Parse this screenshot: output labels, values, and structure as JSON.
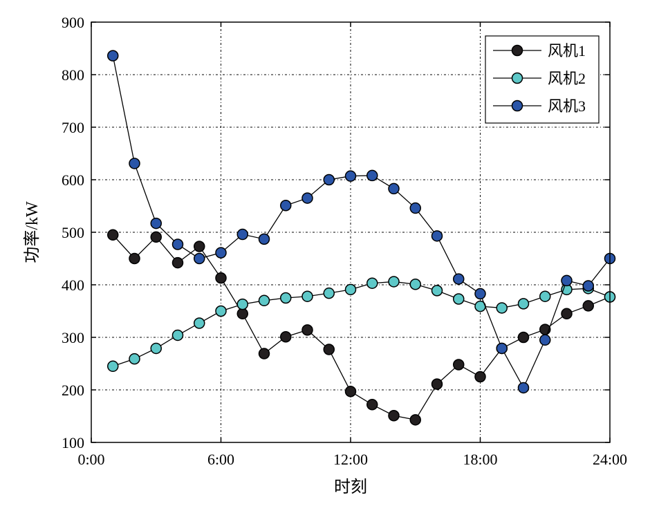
{
  "chart_data": {
    "type": "line",
    "title": "",
    "xlabel": "时刻",
    "ylabel": "功率/kW",
    "xlim": [
      0,
      24
    ],
    "ylim": [
      100,
      900
    ],
    "x_tick_values": [
      0,
      6,
      12,
      18,
      24
    ],
    "x_tick_labels": [
      "0:00",
      "6:00",
      "12:00",
      "18:00",
      "24:00"
    ],
    "y_tick_values": [
      100,
      200,
      300,
      400,
      500,
      600,
      700,
      800,
      900
    ],
    "y_tick_labels": [
      "100",
      "200",
      "300",
      "400",
      "500",
      "600",
      "700",
      "800",
      "900"
    ],
    "grid": true,
    "legend_position": "top-right",
    "x": [
      1,
      2,
      3,
      4,
      5,
      6,
      7,
      8,
      9,
      10,
      11,
      12,
      13,
      14,
      15,
      16,
      17,
      18,
      19,
      20,
      21,
      22,
      23,
      24
    ],
    "series": [
      {
        "name": "风机1",
        "color": "#231f20",
        "values": [
          495,
          450,
          491,
          442,
          473,
          413,
          345,
          269,
          301,
          314,
          277,
          197,
          172,
          151,
          143,
          211,
          248,
          225,
          279,
          300,
          315,
          345,
          360,
          377
        ]
      },
      {
        "name": "风机2",
        "color": "#5ec8c8",
        "values": [
          245,
          259,
          279,
          304,
          327,
          350,
          363,
          370,
          375,
          378,
          384,
          391,
          403,
          406,
          401,
          389,
          373,
          359,
          356,
          364,
          378,
          391,
          393,
          377
        ]
      },
      {
        "name": "风机3",
        "color": "#2a55a8",
        "values": [
          836,
          631,
          517,
          477,
          450,
          461,
          496,
          487,
          551,
          565,
          600,
          607,
          608,
          583,
          546,
          493,
          411,
          383,
          279,
          204,
          295,
          408,
          398,
          450
        ]
      }
    ]
  }
}
